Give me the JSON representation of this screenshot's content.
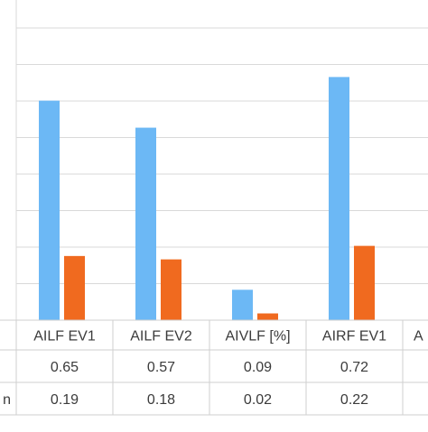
{
  "chart_data": {
    "type": "bar",
    "categories": [
      "AILF EV1",
      "AILF EV2",
      "AIVLF [%]",
      "AIRF EV1",
      "A"
    ],
    "series": [
      {
        "row_label": "",
        "color": "#6cb8f5",
        "values": [
          0.65,
          0.57,
          0.09,
          0.72,
          null
        ]
      },
      {
        "row_label": "n",
        "color": "#f06a1f",
        "values": [
          0.19,
          0.18,
          0.02,
          0.22,
          null
        ]
      }
    ],
    "table": {
      "rows": [
        [
          "0.65",
          "0.57",
          "0.09",
          "0.72",
          ""
        ],
        [
          "0.19",
          "0.18",
          "0.02",
          "0.22",
          ""
        ]
      ]
    },
    "ylim": [
      0,
      0.9
    ],
    "grid": true,
    "legend": "data-table",
    "title": "",
    "xlabel": "",
    "ylabel": ""
  }
}
